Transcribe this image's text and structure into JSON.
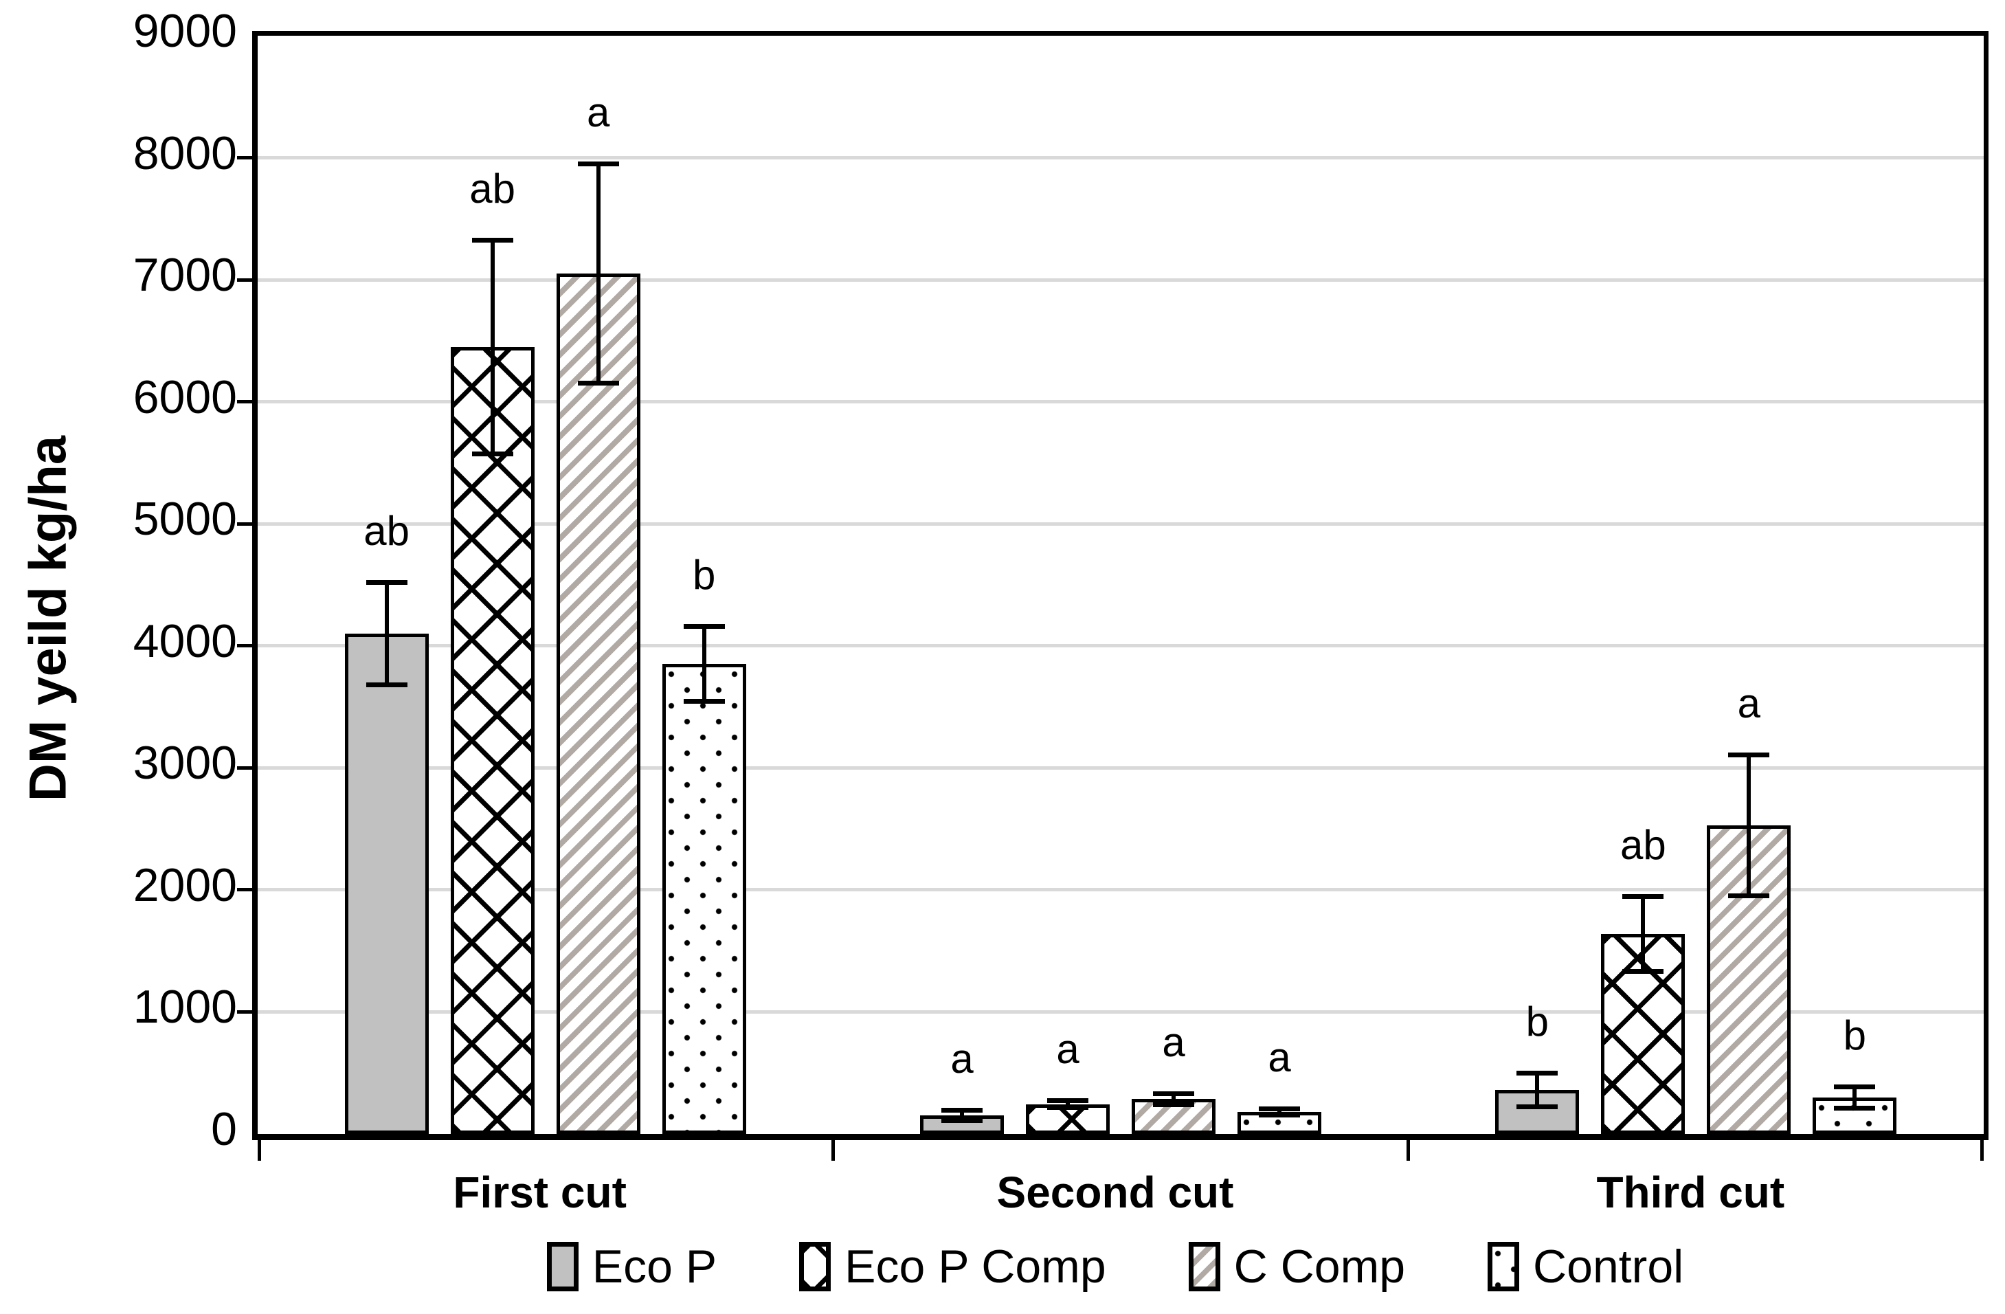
{
  "figure_title": "",
  "y_axis": {
    "title": "DM yeild kg/ha",
    "tick_labels": [
      "0",
      "1000",
      "2000",
      "3000",
      "4000",
      "5000",
      "6000",
      "7000",
      "8000",
      "9000"
    ]
  },
  "colors": {
    "bar_gray": "#c1c1c1",
    "stripe_gray": "#b1aaa4",
    "gridline_gray": "#d9d9d9",
    "line_black": "#000000"
  },
  "chart_data": {
    "type": "bar",
    "title": "",
    "xlabel": "",
    "ylabel": "DM yeild kg/ha",
    "ylim": [
      0,
      9000
    ],
    "ytick_step": 1000,
    "grid": true,
    "legend_position": "bottom",
    "categories": [
      "First cut",
      "Second cut",
      "Third cut"
    ],
    "series": [
      {
        "name": "Eco P",
        "fill": "solid-gray",
        "values": [
          4100,
          150,
          360
        ],
        "errors": [
          420,
          45,
          140
        ],
        "sig_labels": [
          "ab",
          "a",
          "b"
        ]
      },
      {
        "name": "Eco P Comp",
        "fill": "diamond-hatch",
        "values": [
          6450,
          245,
          1640
        ],
        "errors": [
          880,
          30,
          310
        ],
        "sig_labels": [
          "ab",
          "a",
          "ab"
        ]
      },
      {
        "name": "C Comp",
        "fill": "diagonal-stripes",
        "values": [
          7050,
          285,
          2530
        ],
        "errors": [
          900,
          50,
          580
        ],
        "sig_labels": [
          "a",
          "a",
          "a"
        ]
      },
      {
        "name": "Control",
        "fill": "dots",
        "values": [
          3850,
          180,
          300
        ],
        "errors": [
          310,
          30,
          90
        ],
        "sig_labels": [
          "b",
          "a",
          "b"
        ]
      }
    ]
  }
}
